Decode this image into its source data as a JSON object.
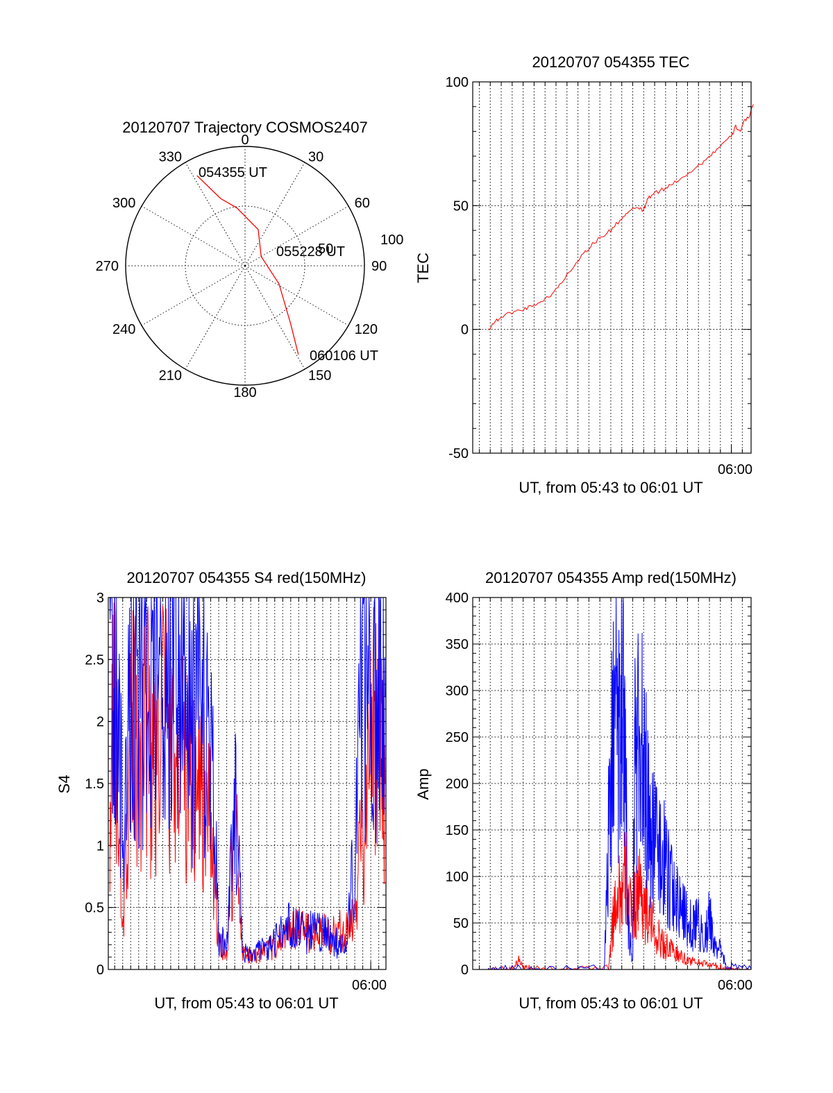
{
  "chart_data": [
    {
      "id": "polar",
      "type": "polar",
      "title": "20120707 Trajectory COSMOS2407",
      "azimuth_labels": [
        "0",
        "30",
        "60",
        "90",
        "120",
        "150",
        "180",
        "210",
        "240",
        "270",
        "300",
        "330"
      ],
      "radial_labels": [
        "50",
        "100"
      ],
      "grid": true,
      "color": "#ff0000",
      "trajectory": {
        "points": [
          {
            "az": 332,
            "el": 13
          },
          {
            "az": 340,
            "el": 36
          },
          {
            "az": 352,
            "el": 46
          },
          {
            "az": 20,
            "el": 61
          },
          {
            "az": 60,
            "el": 76
          },
          {
            "az": 118,
            "el": 61
          },
          {
            "az": 142,
            "el": 34
          },
          {
            "az": 149,
            "el": 12
          }
        ],
        "labels": [
          {
            "text": "054355 UT",
            "at": "start"
          },
          {
            "text": "055228 UT",
            "at": "middle"
          },
          {
            "text": "060106 UT",
            "at": "end"
          }
        ]
      }
    },
    {
      "id": "tec",
      "type": "line",
      "title": "20120707 054355 TEC",
      "ylabel": "TEC",
      "xlabel": "UT, from 05:43 to 06:01 UT",
      "ylim": [
        -50,
        100
      ],
      "yticks": [
        "100",
        "50",
        "0",
        "-50"
      ],
      "xlim_minutes": [
        5.2,
        17.9
      ],
      "xtick_label": "06:00",
      "grid": true,
      "series": [
        {
          "color": "#ff0000",
          "x": [
            5.9,
            6.2,
            6.5,
            7.0,
            7.5,
            8.0,
            8.5,
            9.0,
            9.5,
            10.0,
            10.5,
            11.0,
            11.5,
            12.0,
            12.4,
            12.8,
            13.0,
            13.2,
            13.5,
            14.0,
            14.5,
            15.0,
            15.5,
            16.0,
            16.5,
            17.0,
            17.2,
            17.4,
            17.6,
            17.8,
            18.0
          ],
          "y": [
            0,
            3,
            5,
            7,
            8,
            10,
            12,
            16,
            22,
            28,
            33,
            37,
            40,
            45,
            48,
            49,
            48,
            53,
            55,
            57,
            60,
            63,
            66,
            70,
            74,
            78,
            82,
            80,
            84,
            86,
            91
          ]
        }
      ]
    },
    {
      "id": "s4",
      "type": "line",
      "title": "20120707 054355 S4 red(150MHz)",
      "ylabel": "S4",
      "xlabel": "UT, from 05:43 to 06:01 UT",
      "ylim": [
        0,
        3
      ],
      "yticks": [
        "3",
        "2.5",
        "2",
        "1.5",
        "1",
        "0.5",
        "0"
      ],
      "xlim_minutes": [
        0.6,
        17.95
      ],
      "xtick_label": "06:00",
      "grid": true,
      "series": [
        {
          "color": "#ff0000",
          "x": [
            0.7,
            1.0,
            1.5,
            2.0,
            2.5,
            3.0,
            3.5,
            4.0,
            4.5,
            5.0,
            5.5,
            6.0,
            6.5,
            7.0,
            7.5,
            8.0,
            8.5,
            9.0,
            9.5,
            10.0,
            10.5,
            11.0,
            11.5,
            12.0,
            12.5,
            13.0,
            13.5,
            14.0,
            14.5,
            15.0,
            15.5,
            16.0,
            16.5,
            17.0,
            17.5,
            17.9
          ],
          "y": [
            1.4,
            2.2,
            0.3,
            1.8,
            1.9,
            2.0,
            1.6,
            2.1,
            1.8,
            1.9,
            1.5,
            1.6,
            1.5,
            1.1,
            0.2,
            0.14,
            1.3,
            0.15,
            0.1,
            0.12,
            0.15,
            0.2,
            0.25,
            0.3,
            0.35,
            0.3,
            0.25,
            0.3,
            0.28,
            0.3,
            0.3,
            0.4,
            1.2,
            1.8,
            2.2,
            1.5
          ]
        },
        {
          "color": "#0000ff",
          "x": [
            0.7,
            1.0,
            1.5,
            2.0,
            2.5,
            3.0,
            3.5,
            4.0,
            4.5,
            5.0,
            5.5,
            6.0,
            6.5,
            7.0,
            7.5,
            8.0,
            8.5,
            9.0,
            9.5,
            10.0,
            10.5,
            11.0,
            11.5,
            12.0,
            12.5,
            13.0,
            13.5,
            14.0,
            14.5,
            15.0,
            15.5,
            16.0,
            16.5,
            17.0,
            17.5,
            17.9
          ],
          "y": [
            2.6,
            2.3,
            1.2,
            2.4,
            2.3,
            2.5,
            2.2,
            2.3,
            2.2,
            2.4,
            2.1,
            2.0,
            2.2,
            2.0,
            0.25,
            0.18,
            1.6,
            0.14,
            0.12,
            0.15,
            0.18,
            0.22,
            0.3,
            0.35,
            0.3,
            0.28,
            0.32,
            0.3,
            0.25,
            0.2,
            0.25,
            1.0,
            2.5,
            2.6,
            2.4,
            2.2
          ]
        }
      ]
    },
    {
      "id": "amp",
      "type": "line",
      "title": "20120707 054355 Amp red(150MHz)",
      "ylabel": "Amp",
      "xlabel": "UT, from 05:43 to 06:01 UT",
      "ylim": [
        0,
        400
      ],
      "yticks": [
        "400",
        "350",
        "300",
        "250",
        "200",
        "150",
        "100",
        "50",
        "0"
      ],
      "xlim_minutes": [
        5.2,
        17.9
      ],
      "xtick_label": "06:00",
      "grid": true,
      "series": [
        {
          "color": "#ff0000",
          "x": [
            5.9,
            6.5,
            7.0,
            7.3,
            7.6,
            8.0,
            10.0,
            11.4,
            11.6,
            11.8,
            12.0,
            12.2,
            12.4,
            12.6,
            12.8,
            13.0,
            13.2,
            13.5,
            13.8,
            14.0,
            14.3,
            14.6,
            15.0,
            15.4,
            15.8,
            16.2,
            16.6,
            17.0,
            17.9
          ],
          "y": [
            0,
            0,
            0,
            10,
            2,
            0,
            0,
            1,
            50,
            90,
            80,
            100,
            60,
            70,
            90,
            70,
            55,
            40,
            30,
            25,
            20,
            15,
            10,
            8,
            6,
            4,
            2,
            0,
            0
          ]
        },
        {
          "color": "#0000ff",
          "x": [
            5.9,
            7.0,
            9.0,
            11.2,
            11.5,
            11.7,
            11.9,
            12.1,
            12.3,
            12.5,
            12.6,
            12.8,
            13.0,
            13.2,
            13.4,
            13.7,
            14.0,
            14.3,
            14.6,
            14.9,
            15.2,
            15.5,
            15.8,
            16.0,
            16.2,
            16.5,
            16.8,
            17.9
          ],
          "y": [
            1,
            1,
            1,
            1,
            220,
            260,
            240,
            300,
            40,
            10,
            230,
            260,
            220,
            170,
            140,
            130,
            110,
            90,
            70,
            55,
            45,
            50,
            30,
            60,
            25,
            20,
            3,
            1
          ]
        }
      ]
    }
  ]
}
